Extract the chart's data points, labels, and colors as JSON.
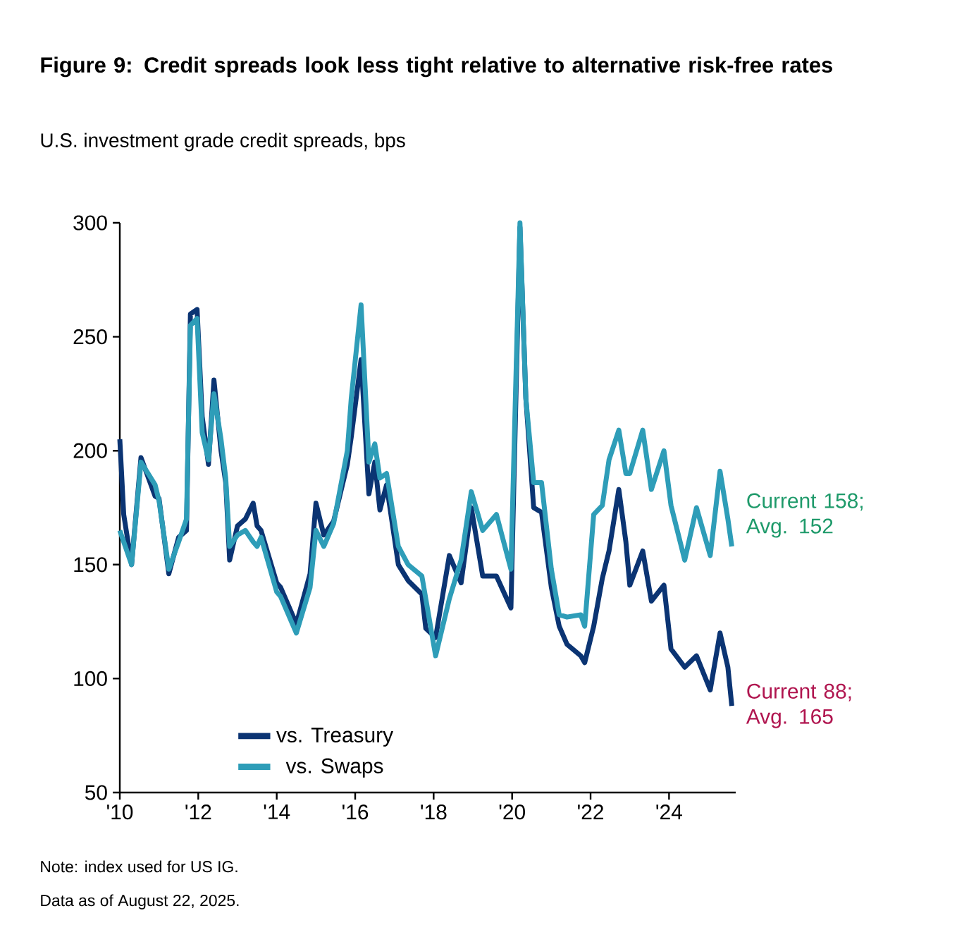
{
  "chart_data": {
    "type": "line",
    "title": "Figure 9: Credit spreads look less tight relative to alternative risk-free rates",
    "subtitle": "U.S. investment grade credit spreads, bps",
    "x": [
      2010.0,
      2010.1,
      2010.3,
      2010.54,
      2010.9,
      2011.0,
      2011.25,
      2011.5,
      2011.7,
      2011.8,
      2011.97,
      2012.1,
      2012.26,
      2012.4,
      2012.58,
      2012.7,
      2012.8,
      2013.0,
      2013.2,
      2013.4,
      2013.5,
      2013.6,
      2014.0,
      2014.1,
      2014.5,
      2014.85,
      2015.0,
      2015.2,
      2015.45,
      2015.8,
      2015.9,
      2016.15,
      2016.35,
      2016.5,
      2016.63,
      2016.8,
      2017.1,
      2017.35,
      2017.7,
      2017.8,
      2018.05,
      2018.4,
      2018.7,
      2018.96,
      2019.25,
      2019.6,
      2019.97,
      2020.2,
      2020.35,
      2020.55,
      2020.75,
      2021.0,
      2021.2,
      2021.4,
      2021.75,
      2021.85,
      2022.08,
      2022.3,
      2022.47,
      2022.72,
      2022.9,
      2023.0,
      2023.33,
      2023.55,
      2023.87,
      2024.05,
      2024.4,
      2024.7,
      2025.05,
      2025.3,
      2025.5,
      2025.6
    ],
    "series": [
      {
        "name": "vs. Treasury",
        "color": "#0b3473",
        "values": [
          205,
          172,
          150,
          197,
          180,
          179,
          146,
          162,
          165,
          260,
          262,
          215,
          194,
          231,
          200,
          186,
          152,
          167,
          170,
          177,
          167,
          165,
          142,
          140,
          124,
          146,
          177,
          163,
          169,
          194,
          206,
          240,
          181,
          195,
          174,
          185,
          150,
          143,
          137,
          122,
          118,
          154,
          142,
          175,
          145,
          145,
          131,
          298,
          223,
          175,
          173,
          140,
          123,
          115,
          110,
          107,
          123,
          144,
          156,
          183,
          160,
          141,
          156,
          134,
          141,
          113,
          105,
          110,
          95,
          120,
          105,
          88
        ]
      },
      {
        "name": "vs. Swaps",
        "color": "#2e9db8",
        "values": [
          165,
          160,
          150,
          195,
          185,
          178,
          148,
          160,
          170,
          255,
          258,
          208,
          196,
          225,
          205,
          188,
          158,
          163,
          165,
          160,
          158,
          162,
          138,
          136,
          120,
          140,
          165,
          158,
          168,
          200,
          223,
          264,
          195,
          203,
          188,
          190,
          158,
          150,
          145,
          135,
          110,
          135,
          152,
          182,
          165,
          172,
          148,
          300,
          223,
          186,
          186,
          148,
          128,
          127,
          128,
          123,
          172,
          176,
          196,
          209,
          190,
          190,
          209,
          183,
          200,
          176,
          152,
          175,
          154,
          191,
          170,
          158
        ]
      }
    ],
    "xlim": [
      2010,
      2025.7
    ],
    "xticks": [
      {
        "value": 2010,
        "label": "'10"
      },
      {
        "value": 2012,
        "label": "'12"
      },
      {
        "value": 2014,
        "label": "'14"
      },
      {
        "value": 2016,
        "label": "'16"
      },
      {
        "value": 2018,
        "label": "'18"
      },
      {
        "value": 2020,
        "label": "'20"
      },
      {
        "value": 2022,
        "label": "'22"
      },
      {
        "value": 2024,
        "label": "'24"
      }
    ],
    "ylim": [
      50,
      300
    ],
    "yticks": [
      50,
      100,
      150,
      200,
      250,
      300
    ],
    "legend": "bottom left",
    "marker": "none",
    "annotations": [
      {
        "text": "Current 158; Avg. 152",
        "x": 2025.6,
        "y": 158
      },
      {
        "text": "Current 88; Avg. 165",
        "x": 2025.6,
        "y": 88
      },
      "Note: index used for US IG.",
      "Data as of August 22, 2025."
    ]
  }
}
